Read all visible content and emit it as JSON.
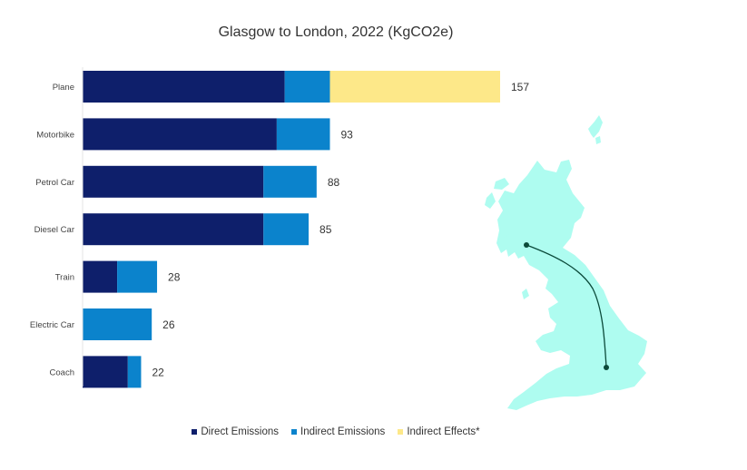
{
  "chart_data": {
    "type": "bar",
    "orientation": "horizontal",
    "stacked": true,
    "title": "Glasgow to London, 2022 (KgCO2e)",
    "categories": [
      "Plane",
      "Motorbike",
      "Petrol Car",
      "Diesel Car",
      "Train",
      "Electric Car",
      "Coach"
    ],
    "series": [
      {
        "name": "Direct Emissions",
        "color": "#0e1f6b",
        "values": [
          76,
          73,
          68,
          68,
          13,
          0,
          17
        ]
      },
      {
        "name": "Indirect Emissions",
        "color": "#0b83cc",
        "values": [
          17,
          20,
          20,
          17,
          15,
          26,
          5
        ]
      },
      {
        "name": "Indirect Effects*",
        "color": "#fde889",
        "values": [
          64,
          0,
          0,
          0,
          0,
          0,
          0
        ]
      }
    ],
    "totals": [
      "157",
      "93",
      "88",
      "85",
      "28",
      "26",
      "22"
    ],
    "xlim": [
      0,
      160
    ],
    "grid": false,
    "legend_position": "bottom"
  },
  "map": {
    "fill_color": "#aefcf0",
    "route_color": "#0b4a3a",
    "icon": "uk-map-icon"
  }
}
